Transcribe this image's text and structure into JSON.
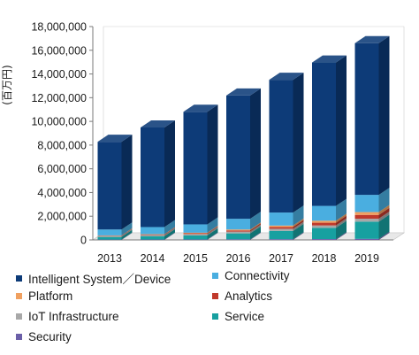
{
  "chart_data": {
    "type": "bar",
    "stacked": true,
    "style": "3d-column",
    "ylabel": "(百万円)",
    "ylim": [
      0,
      18000000
    ],
    "ytick_step": 2000000,
    "yticks": [
      "0",
      "2,000,000",
      "4,000,000",
      "6,000,000",
      "8,000,000",
      "10,000,000",
      "12,000,000",
      "14,000,000",
      "16,000,000",
      "18,000,000"
    ],
    "categories": [
      "2013",
      "2014",
      "2015",
      "2016",
      "2017",
      "2018",
      "2019"
    ],
    "grid": false,
    "legend_position": "bottom",
    "series": [
      {
        "name": "Security",
        "color": "#6b5fa8",
        "values": [
          30000,
          35000,
          40000,
          50000,
          60000,
          70000,
          90000
        ]
      },
      {
        "name": "Service",
        "color": "#17a0a0",
        "values": [
          220000,
          280000,
          340000,
          500000,
          700000,
          950000,
          1450000
        ]
      },
      {
        "name": "IoT Infrastructure",
        "color": "#a8a8a8",
        "values": [
          80000,
          100000,
          120000,
          150000,
          180000,
          200000,
          250000
        ]
      },
      {
        "name": "Analytics",
        "color": "#c0392b",
        "values": [
          30000,
          40000,
          60000,
          100000,
          150000,
          230000,
          320000
        ]
      },
      {
        "name": "Platform",
        "color": "#f0a060",
        "values": [
          20000,
          30000,
          50000,
          80000,
          120000,
          170000,
          240000
        ]
      },
      {
        "name": "Connectivity",
        "color": "#4aaee0",
        "values": [
          500000,
          600000,
          700000,
          900000,
          1100000,
          1250000,
          1450000
        ]
      },
      {
        "name": "Intelligent System／Device",
        "color": "#0d3b78",
        "values": [
          7400000,
          8400000,
          9500000,
          10400000,
          11200000,
          12100000,
          12800000
        ]
      }
    ]
  },
  "legend": [
    {
      "label": "Intelligent System／Device",
      "color": "#0d3b78"
    },
    {
      "label": "Connectivity",
      "color": "#4aaee0"
    },
    {
      "label": "Platform",
      "color": "#f0a060"
    },
    {
      "label": "Analytics",
      "color": "#c0392b"
    },
    {
      "label": "IoT Infrastructure",
      "color": "#a8a8a8"
    },
    {
      "label": "Service",
      "color": "#17a0a0"
    },
    {
      "label": "Security",
      "color": "#6b5fa8"
    }
  ]
}
